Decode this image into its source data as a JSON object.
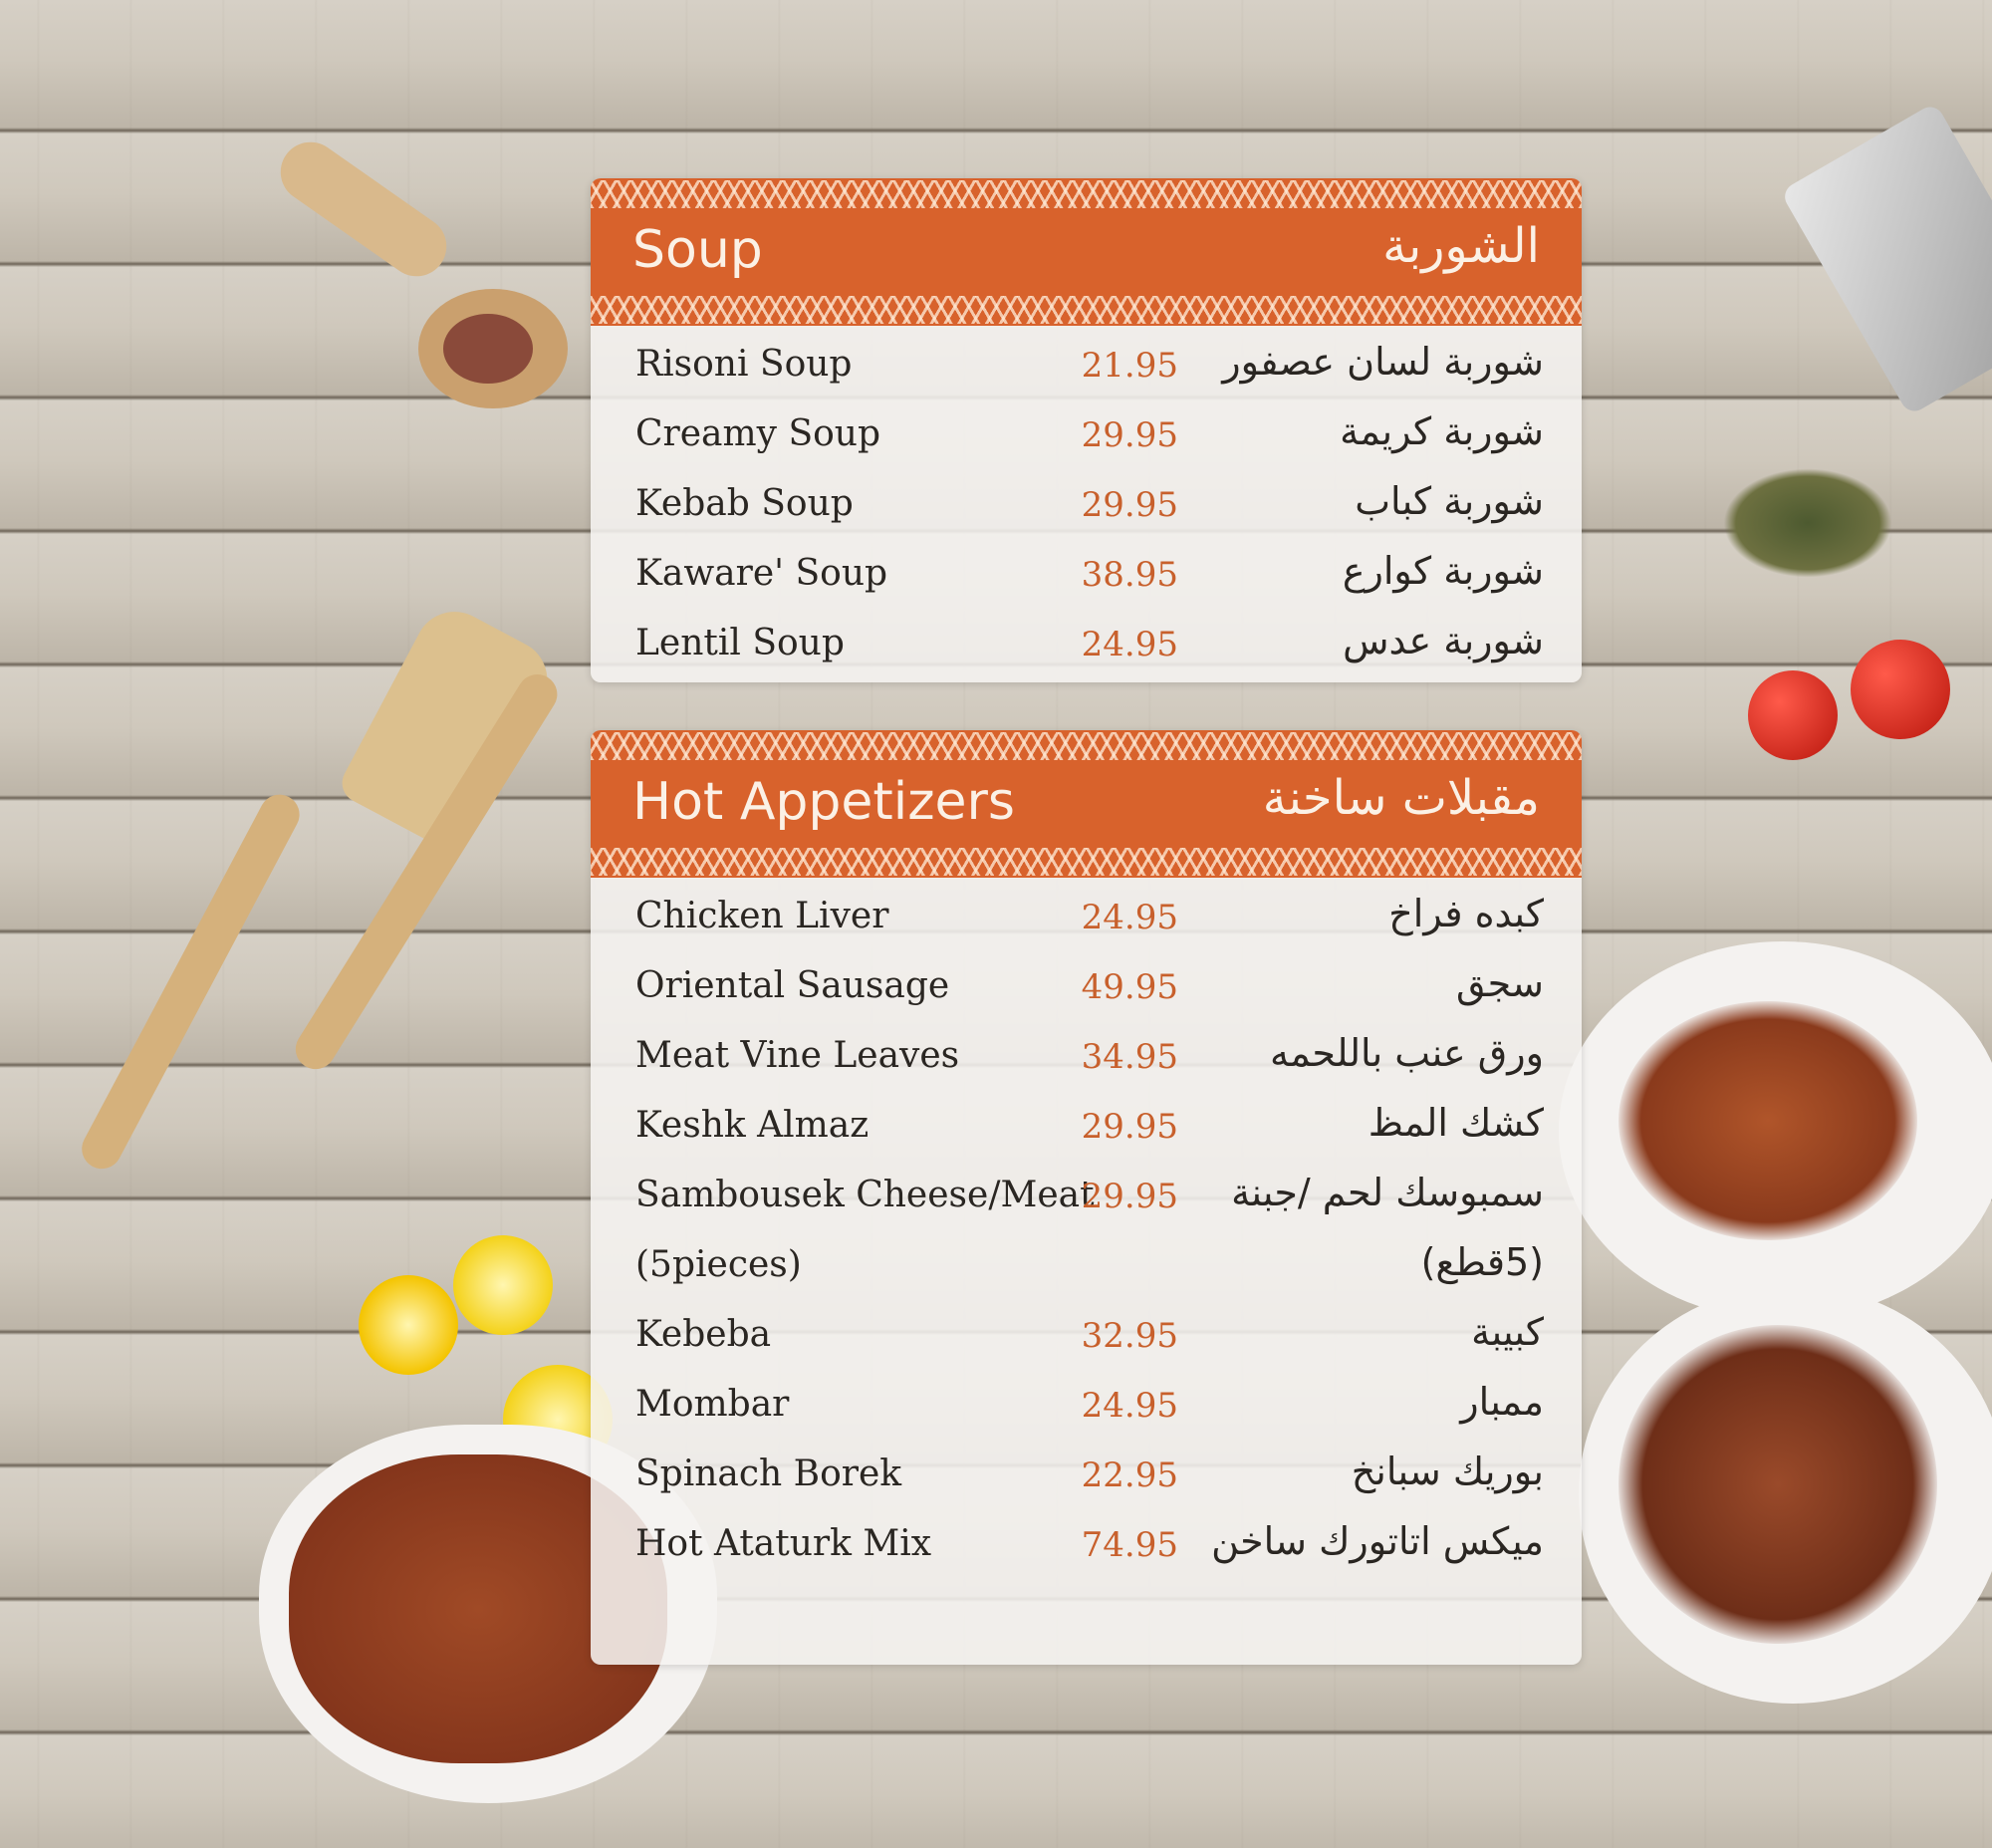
{
  "sections": [
    {
      "title_en": "Soup",
      "title_ar": "الشوربة",
      "items": [
        {
          "en": "Risoni Soup",
          "price": "21.95",
          "ar": "شوربة لسان عصفور"
        },
        {
          "en": "Creamy Soup",
          "price": "29.95",
          "ar": "شوربة كريمة"
        },
        {
          "en": "Kebab Soup",
          "price": "29.95",
          "ar": "شوربة كباب"
        },
        {
          "en": "Kaware' Soup",
          "price": "38.95",
          "ar": "شوربة كوارع"
        },
        {
          "en": "Lentil Soup",
          "price": "24.95",
          "ar": "شوربة عدس"
        }
      ]
    },
    {
      "title_en": "Hot Appetizers",
      "title_ar": "مقبلات ساخنة",
      "items": [
        {
          "en": "Chicken Liver",
          "price": "24.95",
          "ar": "كبده فراخ"
        },
        {
          "en": "Oriental Sausage",
          "price": "49.95",
          "ar": "سجق"
        },
        {
          "en": "Meat Vine Leaves",
          "price": "34.95",
          "ar": "ورق عنب باللحمه"
        },
        {
          "en": "Keshk Almaz",
          "price": "29.95",
          "ar": "كشك المظ"
        },
        {
          "en": "Sambousek Cheese/Meat",
          "price": "29.95",
          "ar": "سمبوسك لحم /جبنة"
        },
        {
          "en": "(5pieces)",
          "price": "",
          "ar": "(5قطع)"
        },
        {
          "en": "Kebeba",
          "price": "32.95",
          "ar": "كبيبة"
        },
        {
          "en": "Mombar",
          "price": "24.95",
          "ar": "ممبار"
        },
        {
          "en": "Spinach Borek",
          "price": "22.95",
          "ar": "بوريك سبانخ"
        },
        {
          "en": "Hot Ataturk Mix",
          "price": "74.95",
          "ar": "ميكس اتاتورك ساخن"
        }
      ]
    }
  ],
  "colors": {
    "header": "#d8622c",
    "price": "#c8602c",
    "text": "#2a2622"
  }
}
